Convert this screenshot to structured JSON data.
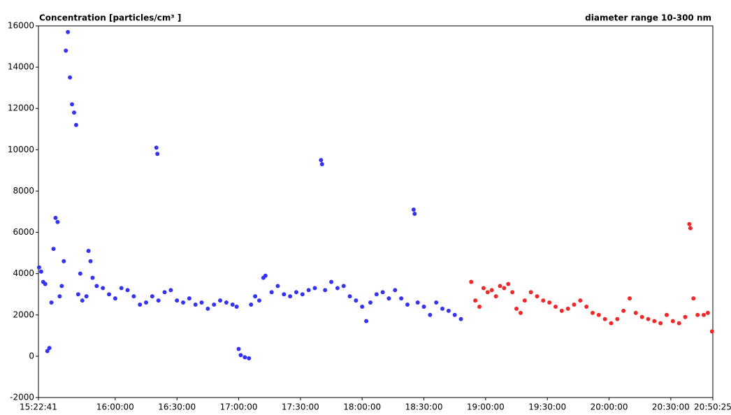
{
  "chart_data": {
    "type": "scatter",
    "title": "Concentration [particles/cm³ ]",
    "subtitle": "diameter range 10-300 nm",
    "xlim": [
      "15:22:41",
      "20:50:25"
    ],
    "xticks": [
      "15:22:41",
      "16:00:00",
      "16:30:00",
      "17:00:00",
      "17:30:00",
      "18:00:00",
      "18:30:00",
      "19:00:00",
      "19:30:00",
      "20:00:00",
      "20:30:00",
      "20:50:25"
    ],
    "ylim": [
      -2000,
      16000
    ],
    "yticks": [
      -2000,
      0,
      2000,
      4000,
      6000,
      8000,
      10000,
      12000,
      14000,
      16000
    ],
    "series": [
      {
        "color": "#3434f0",
        "x": [
          "15:23:00",
          "15:24:00",
          "15:25:00",
          "15:26:00",
          "15:27:00",
          "15:28:00",
          "15:29:00",
          "15:30:00",
          "15:31:00",
          "15:32:00",
          "15:33:00",
          "15:34:00",
          "15:35:00",
          "15:36:00",
          "15:37:00",
          "15:38:00",
          "15:39:00",
          "15:40:00",
          "15:41:00",
          "15:42:00",
          "15:43:00",
          "15:44:00",
          "15:46:00",
          "15:47:00",
          "15:48:00",
          "15:49:00",
          "15:51:00",
          "15:54:00",
          "15:57:00",
          "16:00:00",
          "16:03:00",
          "16:06:00",
          "16:09:00",
          "16:12:00",
          "16:15:00",
          "16:18:00",
          "16:20:00",
          "16:20:30",
          "16:21:00",
          "16:24:00",
          "16:27:00",
          "16:30:00",
          "16:33:00",
          "16:36:00",
          "16:39:00",
          "16:42:00",
          "16:45:00",
          "16:48:00",
          "16:51:00",
          "16:54:00",
          "16:57:00",
          "16:59:00",
          "17:00:00",
          "17:01:00",
          "17:03:00",
          "17:05:00",
          "17:06:00",
          "17:08:00",
          "17:10:00",
          "17:12:00",
          "17:13:00",
          "17:16:00",
          "17:19:00",
          "17:22:00",
          "17:25:00",
          "17:28:00",
          "17:31:00",
          "17:34:00",
          "17:37:00",
          "17:40:00",
          "17:40:30",
          "17:42:00",
          "17:45:00",
          "17:48:00",
          "17:51:00",
          "17:54:00",
          "17:57:00",
          "18:00:00",
          "18:02:00",
          "18:04:00",
          "18:07:00",
          "18:10:00",
          "18:13:00",
          "18:16:00",
          "18:19:00",
          "18:22:00",
          "18:25:00",
          "18:25:30",
          "18:27:00",
          "18:30:00",
          "18:33:00",
          "18:36:00",
          "18:39:00",
          "18:42:00",
          "18:45:00",
          "18:48:00"
        ],
        "values": [
          4300,
          4100,
          3600,
          3500,
          250,
          400,
          2600,
          5200,
          6700,
          6500,
          2900,
          3400,
          4600,
          14800,
          15700,
          13500,
          12200,
          11800,
          11200,
          3000,
          4000,
          2700,
          2900,
          5100,
          4600,
          3800,
          3400,
          3300,
          3000,
          2800,
          3300,
          3200,
          2900,
          2500,
          2600,
          2900,
          10100,
          9800,
          2700,
          3100,
          3200,
          2700,
          2600,
          2800,
          2500,
          2600,
          2300,
          2500,
          2700,
          2600,
          2500,
          2400,
          350,
          50,
          -50,
          -100,
          2500,
          2900,
          2700,
          3800,
          3900,
          3100,
          3400,
          3000,
          2900,
          3100,
          3000,
          3200,
          3300,
          9500,
          9300,
          3200,
          3600,
          3300,
          3400,
          2900,
          2700,
          2400,
          1700,
          2600,
          3000,
          3100,
          2800,
          3200,
          2800,
          2500,
          7100,
          6900,
          2600,
          2400,
          2000,
          2600,
          2300,
          2200,
          2000,
          1800
        ]
      },
      {
        "color": "#f02828",
        "x": [
          "18:53:00",
          "18:55:00",
          "18:57:00",
          "18:59:00",
          "19:01:00",
          "19:03:00",
          "19:05:00",
          "19:07:00",
          "19:09:00",
          "19:11:00",
          "19:13:00",
          "19:15:00",
          "19:17:00",
          "19:19:00",
          "19:22:00",
          "19:25:00",
          "19:28:00",
          "19:31:00",
          "19:34:00",
          "19:37:00",
          "19:40:00",
          "19:43:00",
          "19:46:00",
          "19:49:00",
          "19:52:00",
          "19:55:00",
          "19:58:00",
          "20:01:00",
          "20:04:00",
          "20:07:00",
          "20:10:00",
          "20:13:00",
          "20:16:00",
          "20:19:00",
          "20:22:00",
          "20:25:00",
          "20:28:00",
          "20:31:00",
          "20:34:00",
          "20:37:00",
          "20:39:00",
          "20:39:30",
          "20:41:00",
          "20:43:00",
          "20:46:00",
          "20:48:00",
          "20:50:00"
        ],
        "values": [
          3600,
          2700,
          2400,
          3300,
          3100,
          3200,
          2900,
          3400,
          3300,
          3500,
          3100,
          2300,
          2100,
          2700,
          3100,
          2900,
          2700,
          2600,
          2400,
          2200,
          2300,
          2500,
          2700,
          2400,
          2100,
          2000,
          1800,
          1600,
          1800,
          2200,
          2800,
          2100,
          1900,
          1800,
          1700,
          1600,
          2000,
          1700,
          1600,
          1900,
          6400,
          6200,
          2800,
          2000,
          2000,
          2100,
          1200
        ]
      }
    ]
  }
}
